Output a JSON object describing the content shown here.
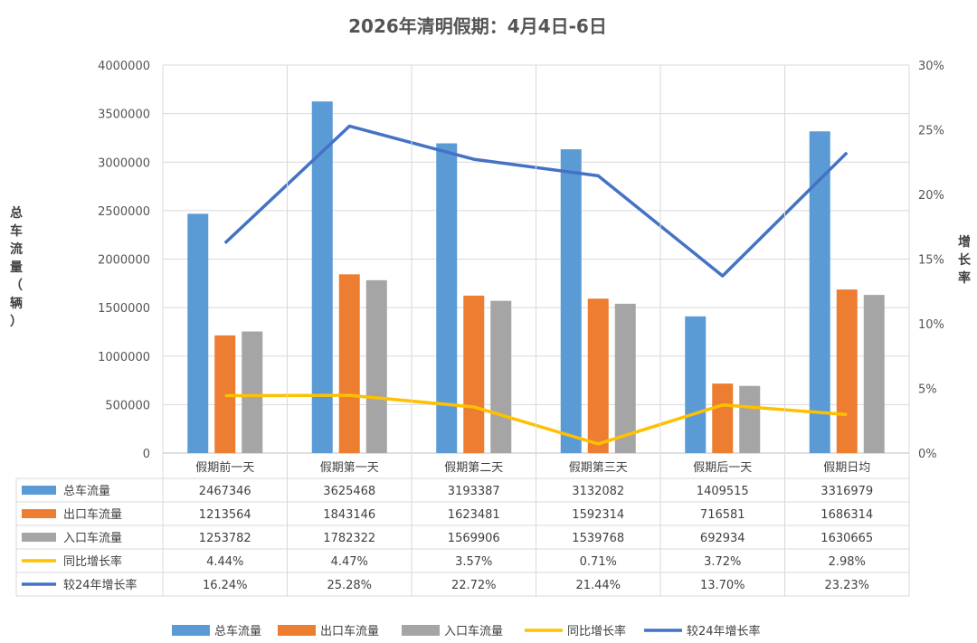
{
  "chart_data": {
    "type": "bar",
    "title": "2026年清明假期：4月4日-6日",
    "categories": [
      "假期前一天",
      "假期第一天",
      "假期第二天",
      "假期第三天",
      "假期后一天",
      "假期日均"
    ],
    "ylabel": "总车流量（辆）",
    "y2label": "增长率",
    "ylim": [
      0,
      4000000
    ],
    "y2lim": [
      0,
      30
    ],
    "yticks": [
      "0",
      "500000",
      "1000000",
      "1500000",
      "2000000",
      "2500000",
      "3000000",
      "3500000",
      "4000000"
    ],
    "y2ticks": [
      "0%",
      "5%",
      "10%",
      "15%",
      "20%",
      "25%",
      "30%"
    ],
    "grid": true,
    "legend_position": "bottom",
    "series": [
      {
        "name": "总车流量",
        "kind": "bar",
        "color": "#5B9BD5",
        "values": [
          2467346,
          3625468,
          3193387,
          3132082,
          1409515,
          3316979
        ],
        "labels": [
          "2467346",
          "3625468",
          "3193387",
          "3132082",
          "1409515",
          "3316979"
        ]
      },
      {
        "name": "出口车流量",
        "kind": "bar",
        "color": "#ED7D31",
        "values": [
          1213564,
          1843146,
          1623481,
          1592314,
          716581,
          1686314
        ],
        "labels": [
          "1213564",
          "1843146",
          "1623481",
          "1592314",
          "716581",
          "1686314"
        ]
      },
      {
        "name": "入口车流量",
        "kind": "bar",
        "color": "#A5A5A5",
        "values": [
          1253782,
          1782322,
          1569906,
          1539768,
          692934,
          1630665
        ],
        "labels": [
          "1253782",
          "1782322",
          "1569906",
          "1539768",
          "692934",
          "1630665"
        ]
      },
      {
        "name": "同比增长率",
        "kind": "line",
        "axis": "right",
        "color": "#FFC000",
        "values": [
          4.44,
          4.47,
          3.57,
          0.71,
          3.72,
          2.98
        ],
        "labels": [
          "4.44%",
          "4.47%",
          "3.57%",
          "0.71%",
          "3.72%",
          "2.98%"
        ]
      },
      {
        "name": "较24年增长率",
        "kind": "line",
        "axis": "right",
        "color": "#4472C4",
        "values": [
          16.24,
          25.28,
          22.72,
          21.44,
          13.7,
          23.23
        ],
        "labels": [
          "16.24%",
          "25.28%",
          "22.72%",
          "21.44%",
          "13.70%",
          "23.23%"
        ]
      }
    ]
  }
}
